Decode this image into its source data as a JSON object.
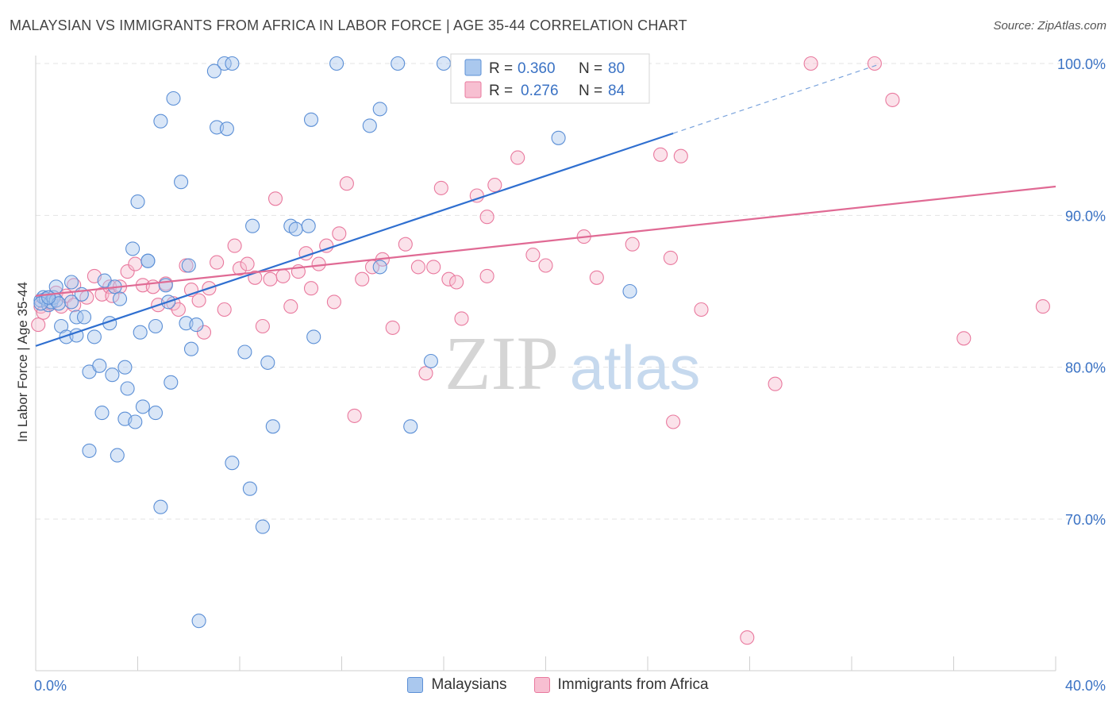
{
  "title": "MALAYSIAN VS IMMIGRANTS FROM AFRICA IN LABOR FORCE | AGE 35-44 CORRELATION CHART",
  "source": "Source: ZipAtlas.com",
  "watermark": {
    "zip": "ZIP",
    "atlas": "atlas"
  },
  "chart_data": {
    "type": "scatter",
    "xlabel": "",
    "ylabel": "In Labor Force | Age 35-44",
    "xlim": [
      0,
      40
    ],
    "ylim": [
      61,
      102
    ],
    "x_tick_labels": [
      {
        "value": 0,
        "label": "0.0%"
      },
      {
        "value": 40,
        "label": "40.0%"
      }
    ],
    "y_tick_labels": [
      {
        "value": 100,
        "label": "100.0%"
      },
      {
        "value": 90,
        "label": "90.0%"
      },
      {
        "value": 80,
        "label": "80.0%"
      },
      {
        "value": 70,
        "label": "70.0%"
      }
    ],
    "grid": true,
    "legend_position": "top-center",
    "series": [
      {
        "name": "Malaysians",
        "color": "#5b8fd6",
        "fill": "#aac8ee",
        "r_label": "R =",
        "r_value": "0.360",
        "n_label": "N =",
        "n_value": "80",
        "trend": {
          "x0": 0,
          "y0": 81.4,
          "x1": 25.0,
          "y1": 95.4,
          "dash_x1": 33.0,
          "dash_y1": 99.9
        },
        "points": [
          [
            0.2,
            84.4
          ],
          [
            0.3,
            84.6
          ],
          [
            0.4,
            84.5
          ],
          [
            0.5,
            84.1
          ],
          [
            0.6,
            84.3
          ],
          [
            0.7,
            84.6
          ],
          [
            0.8,
            84.4
          ],
          [
            0.9,
            84.2
          ],
          [
            0.2,
            84.2
          ],
          [
            0.5,
            84.6
          ],
          [
            0.8,
            85.3
          ],
          [
            1.0,
            82.7
          ],
          [
            1.2,
            82.0
          ],
          [
            1.4,
            84.3
          ],
          [
            1.4,
            85.6
          ],
          [
            1.6,
            82.1
          ],
          [
            1.6,
            83.3
          ],
          [
            1.8,
            84.8
          ],
          [
            1.9,
            83.3
          ],
          [
            2.1,
            79.7
          ],
          [
            2.3,
            82.0
          ],
          [
            2.5,
            80.1
          ],
          [
            2.6,
            77.0
          ],
          [
            2.7,
            85.7
          ],
          [
            2.1,
            74.5
          ],
          [
            2.9,
            82.9
          ],
          [
            3.0,
            79.5
          ],
          [
            3.1,
            85.3
          ],
          [
            3.2,
            74.2
          ],
          [
            3.3,
            84.5
          ],
          [
            3.5,
            80.0
          ],
          [
            3.5,
            76.6
          ],
          [
            3.6,
            78.6
          ],
          [
            3.8,
            87.8
          ],
          [
            3.9,
            76.4
          ],
          [
            4.0,
            90.9
          ],
          [
            4.1,
            82.3
          ],
          [
            4.2,
            77.4
          ],
          [
            4.4,
            87.0
          ],
          [
            4.4,
            87.0
          ],
          [
            4.7,
            77.0
          ],
          [
            4.7,
            82.7
          ],
          [
            4.9,
            96.2
          ],
          [
            4.9,
            70.8
          ],
          [
            5.1,
            85.4
          ],
          [
            5.2,
            84.3
          ],
          [
            5.3,
            79.0
          ],
          [
            5.4,
            97.7
          ],
          [
            5.7,
            92.2
          ],
          [
            5.9,
            82.9
          ],
          [
            6.0,
            86.7
          ],
          [
            6.1,
            81.2
          ],
          [
            6.3,
            82.8
          ],
          [
            6.4,
            63.3
          ],
          [
            7.4,
            100.0
          ],
          [
            7.7,
            100.0
          ],
          [
            7.0,
            99.5
          ],
          [
            7.1,
            95.8
          ],
          [
            7.5,
            95.7
          ],
          [
            7.7,
            73.7
          ],
          [
            8.2,
            81.0
          ],
          [
            8.4,
            72.0
          ],
          [
            8.5,
            89.3
          ],
          [
            8.9,
            69.5
          ],
          [
            9.1,
            80.3
          ],
          [
            9.3,
            76.1
          ],
          [
            10.0,
            89.3
          ],
          [
            10.2,
            89.1
          ],
          [
            10.7,
            89.3
          ],
          [
            10.8,
            96.3
          ],
          [
            10.9,
            82.0
          ],
          [
            11.8,
            100.0
          ],
          [
            13.1,
            95.9
          ],
          [
            13.5,
            97.0
          ],
          [
            13.5,
            86.6
          ],
          [
            14.2,
            100.0
          ],
          [
            14.7,
            76.1
          ],
          [
            15.5,
            80.4
          ],
          [
            16.0,
            100.0
          ],
          [
            20.5,
            95.1
          ],
          [
            23.3,
            85.0
          ]
        ]
      },
      {
        "name": "Immigrants from Africa",
        "color": "#e9799e",
        "fill": "#f7bfd1",
        "r_label": "R =",
        "r_value": "0.276",
        "n_label": "N =",
        "n_value": "84",
        "trend": {
          "x0": 0,
          "y0": 84.7,
          "x1": 40,
          "y1": 91.9
        },
        "points": [
          [
            0.1,
            82.8
          ],
          [
            0.2,
            84.0
          ],
          [
            0.3,
            83.6
          ],
          [
            0.4,
            84.5
          ],
          [
            0.6,
            84.2
          ],
          [
            0.8,
            84.9
          ],
          [
            1.0,
            84.0
          ],
          [
            1.2,
            84.7
          ],
          [
            1.5,
            84.1
          ],
          [
            1.5,
            85.4
          ],
          [
            2.0,
            84.6
          ],
          [
            2.3,
            86.0
          ],
          [
            2.6,
            84.8
          ],
          [
            2.9,
            85.3
          ],
          [
            3.0,
            84.7
          ],
          [
            3.3,
            85.3
          ],
          [
            3.6,
            86.3
          ],
          [
            3.9,
            86.8
          ],
          [
            4.2,
            85.4
          ],
          [
            4.6,
            85.3
          ],
          [
            4.8,
            84.1
          ],
          [
            5.1,
            85.5
          ],
          [
            5.4,
            84.2
          ],
          [
            5.6,
            83.8
          ],
          [
            5.9,
            86.7
          ],
          [
            6.1,
            85.1
          ],
          [
            6.4,
            84.4
          ],
          [
            6.6,
            82.3
          ],
          [
            6.8,
            85.2
          ],
          [
            7.1,
            86.9
          ],
          [
            7.4,
            83.8
          ],
          [
            7.8,
            88.0
          ],
          [
            8.0,
            86.5
          ],
          [
            8.3,
            86.8
          ],
          [
            8.6,
            85.9
          ],
          [
            8.9,
            82.7
          ],
          [
            9.2,
            85.8
          ],
          [
            9.4,
            91.1
          ],
          [
            9.7,
            86.0
          ],
          [
            10.0,
            84.0
          ],
          [
            10.3,
            86.3
          ],
          [
            10.6,
            87.5
          ],
          [
            10.8,
            85.2
          ],
          [
            11.1,
            86.8
          ],
          [
            11.4,
            88.0
          ],
          [
            11.7,
            84.3
          ],
          [
            11.9,
            88.8
          ],
          [
            12.2,
            92.1
          ],
          [
            12.5,
            76.8
          ],
          [
            12.8,
            85.8
          ],
          [
            13.2,
            86.6
          ],
          [
            13.6,
            87.1
          ],
          [
            14.0,
            82.6
          ],
          [
            14.5,
            88.1
          ],
          [
            15.0,
            86.6
          ],
          [
            15.3,
            79.6
          ],
          [
            15.6,
            86.6
          ],
          [
            15.9,
            91.8
          ],
          [
            16.2,
            85.8
          ],
          [
            16.5,
            85.6
          ],
          [
            16.7,
            83.2
          ],
          [
            17.3,
            91.3
          ],
          [
            17.7,
            89.9
          ],
          [
            17.7,
            86.0
          ],
          [
            18.0,
            92.0
          ],
          [
            18.9,
            93.8
          ],
          [
            19.5,
            87.4
          ],
          [
            20.0,
            86.7
          ],
          [
            21.5,
            88.6
          ],
          [
            22.0,
            85.9
          ],
          [
            23.4,
            88.1
          ],
          [
            24.5,
            94.0
          ],
          [
            24.9,
            87.2
          ],
          [
            25.0,
            76.4
          ],
          [
            25.3,
            93.9
          ],
          [
            26.1,
            83.8
          ],
          [
            27.9,
            62.2
          ],
          [
            29.0,
            78.9
          ],
          [
            30.4,
            100.0
          ],
          [
            32.9,
            100.0
          ],
          [
            33.6,
            97.6
          ],
          [
            36.4,
            81.9
          ],
          [
            39.5,
            84.0
          ]
        ]
      }
    ]
  }
}
